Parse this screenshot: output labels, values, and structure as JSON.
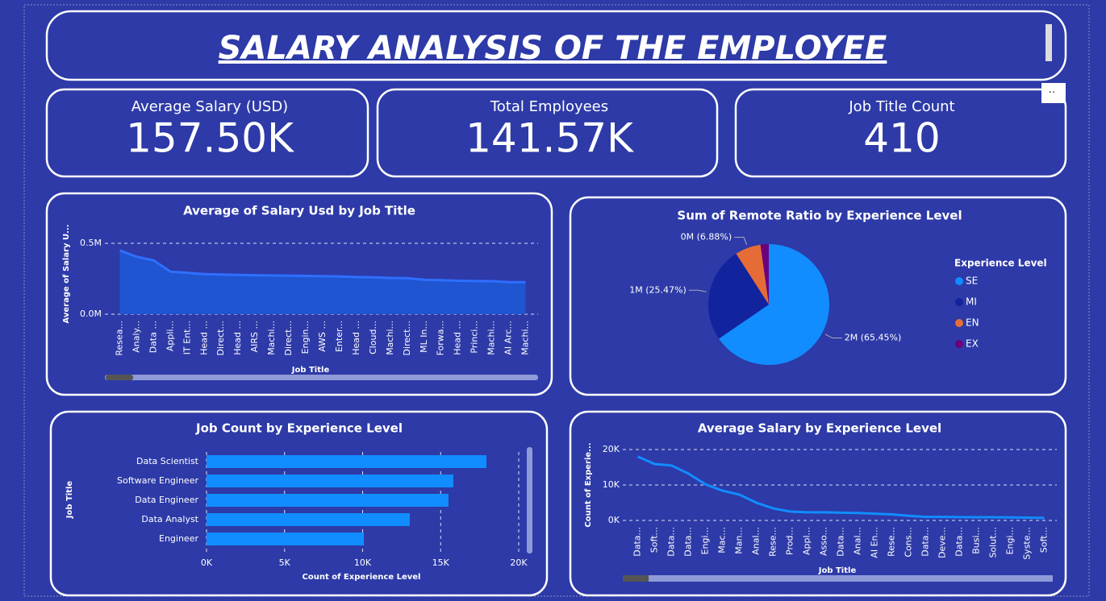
{
  "header": {
    "title": "SALARY ANALYSIS OF THE EMPLOYEE"
  },
  "cards": [
    {
      "label": "Average Salary (USD)",
      "value": "157.50K"
    },
    {
      "label": "Total Employees",
      "value": "141.57K"
    },
    {
      "label": "Job Title Count",
      "value": "410"
    }
  ],
  "chart_data": [
    {
      "type": "area",
      "title": "Average of Salary Usd by Job Title",
      "x_label": "Job Title",
      "y_label": "Average of Salary U...",
      "categories": [
        "Resea...",
        "Analy...",
        "Data ...",
        "Appli...",
        "IT Ent...",
        "Head ...",
        "Direct...",
        "Head ...",
        "AIRS ...",
        "Machi...",
        "Direct...",
        "Engin...",
        "AWS ...",
        "Enter...",
        "Head ...",
        "Cloud...",
        "Machi...",
        "Direct...",
        "ML In...",
        "Forwa...",
        "Head ...",
        "Princi...",
        "Machi...",
        "AI Arc...",
        "Machi..."
      ],
      "values": [
        450000,
        405000,
        380000,
        300000,
        292000,
        283000,
        280000,
        277000,
        275000,
        273000,
        272000,
        270000,
        268000,
        266000,
        262000,
        260000,
        256000,
        254000,
        243000,
        240000,
        236000,
        234000,
        233000,
        226000,
        226000
      ],
      "color": "#2f6fff",
      "ylim": [
        0,
        550000
      ],
      "yticks": [
        {
          "value": 0,
          "label": "0.0M"
        },
        {
          "value": 500000,
          "label": "0.5M"
        }
      ],
      "grid": true
    },
    {
      "type": "pie",
      "title": "Sum of Remote Ratio by Experience Level",
      "legend_title": "Experience Level",
      "legend": "right",
      "categories": [
        "SE",
        "MI",
        "EN",
        "EX"
      ],
      "values": [
        65.45,
        25.47,
        6.88,
        2.2
      ],
      "value_labels": [
        "2M (65.45%)",
        "1M (25.47%)",
        "0M (6.88%)",
        null
      ],
      "colors": [
        "#118DFF",
        "#12239E",
        "#E66C37",
        "#6B007B"
      ]
    },
    {
      "type": "bar",
      "orientation": "horizontal",
      "title": "Job Count by Experience Level",
      "x_label": "Count of Experience Level",
      "y_label": "Job Title",
      "categories": [
        "Data Scientist",
        "Software Engineer",
        "Data Engineer",
        "Data Analyst",
        "Engineer"
      ],
      "values": [
        17930,
        15810,
        15500,
        13020,
        10080
      ],
      "color": "#118DFF",
      "xlim": [
        0,
        20000
      ],
      "xticks": [
        {
          "value": 0,
          "label": "0K"
        },
        {
          "value": 5000,
          "label": "5K"
        },
        {
          "value": 10000,
          "label": "10K"
        },
        {
          "value": 15000,
          "label": "15K"
        },
        {
          "value": 20000,
          "label": "20K"
        }
      ],
      "grid": true
    },
    {
      "type": "line",
      "title": "Average Salary by Experience Level",
      "x_label": "Job Title",
      "y_label": "Count of Experie...",
      "categories": [
        "Data...",
        "Soft...",
        "Data...",
        "Data...",
        "Engi...",
        "Mac...",
        "Man...",
        "Anal...",
        "Rese...",
        "Prod...",
        "Appl...",
        "Asso...",
        "Data...",
        "Anal...",
        "AI En...",
        "Rese...",
        "Cons...",
        "Data...",
        "Deve...",
        "Data...",
        "Busi...",
        "Solut...",
        "Engi...",
        "Syste...",
        "Soft..."
      ],
      "values": [
        18000,
        15900,
        15500,
        13200,
        10200,
        8400,
        7300,
        5000,
        3400,
        2500,
        2300,
        2300,
        2200,
        2100,
        1900,
        1700,
        1300,
        1000,
        1000,
        950,
        900,
        900,
        850,
        800,
        700
      ],
      "color": "#118DFF",
      "ylim": [
        0,
        20000
      ],
      "yticks": [
        {
          "value": 0,
          "label": "0K"
        },
        {
          "value": 10000,
          "label": "10K"
        },
        {
          "value": 20000,
          "label": "20K"
        }
      ],
      "grid": true
    }
  ]
}
